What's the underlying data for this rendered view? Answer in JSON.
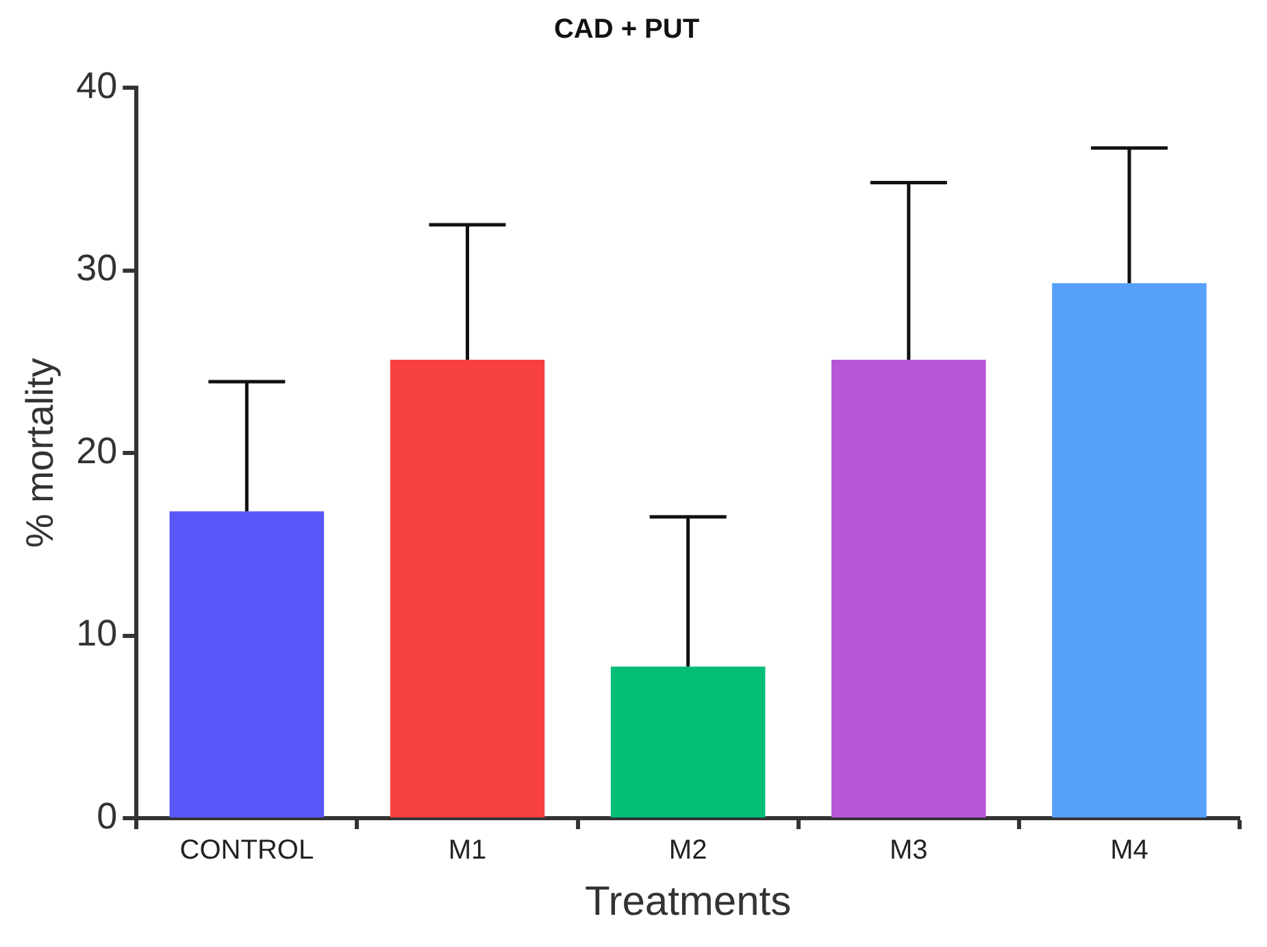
{
  "chart_data": {
    "type": "bar",
    "title": "CAD + PUT",
    "xlabel": "Treatments",
    "ylabel": "% mortality",
    "categories": [
      "CONTROL",
      "M1",
      "M2",
      "M3",
      "M4"
    ],
    "values": [
      16.8,
      25.1,
      8.3,
      25.1,
      29.3
    ],
    "colors": [
      "#5757f8",
      "#f74040",
      "#04bd76",
      "#b857d6",
      "#56a0fa"
    ],
    "errors": [
      [
        16.8,
        23.9
      ],
      [
        25.1,
        32.5
      ],
      [
        8.3,
        16.5
      ],
      [
        25.1,
        34.8
      ],
      [
        29.3,
        36.7
      ]
    ],
    "ylim": [
      0,
      40
    ],
    "yticks": [
      0,
      10,
      20,
      30,
      40
    ],
    "grid": false,
    "legend": false
  }
}
